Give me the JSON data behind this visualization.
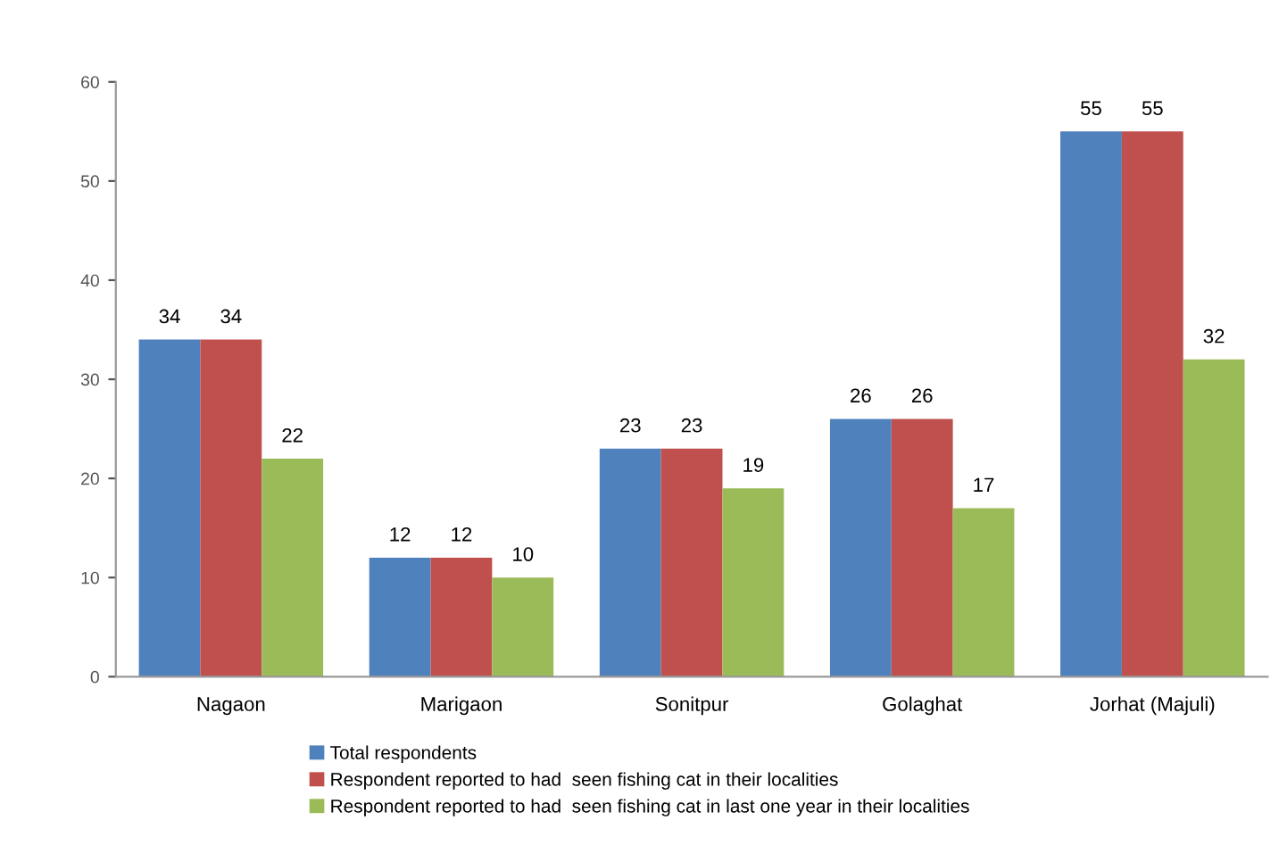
{
  "chart_data": {
    "type": "bar",
    "categories": [
      "Nagaon",
      "Marigaon",
      "Sonitpur",
      "Golaghat",
      "Jorhat (Majuli)"
    ],
    "series": [
      {
        "name": "Total respondents",
        "color": "#4f81bd",
        "values": [
          34,
          12,
          23,
          26,
          55
        ]
      },
      {
        "name": "Respondent reported to had  seen fishing cat in their localities",
        "color": "#c0504d",
        "values": [
          34,
          12,
          23,
          26,
          55
        ]
      },
      {
        "name": "Respondent reported to had  seen fishing cat in last one year in their localities",
        "color": "#9bbb59",
        "values": [
          22,
          10,
          19,
          17,
          32
        ]
      }
    ],
    "ylim": [
      0,
      60
    ],
    "yticks": [
      0,
      10,
      20,
      30,
      40,
      50,
      60
    ],
    "grid": false,
    "legend": "bottom",
    "data_labels": true
  }
}
